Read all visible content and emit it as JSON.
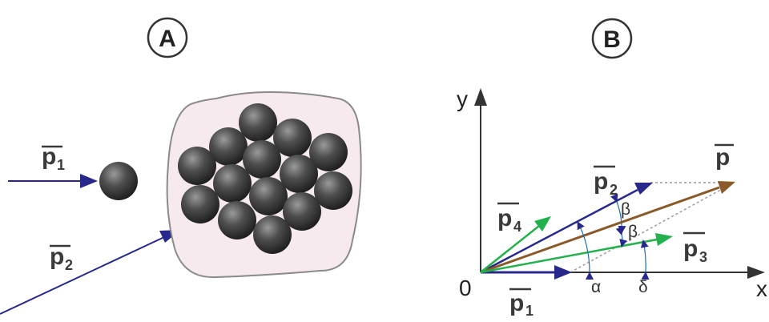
{
  "panels": {
    "a": {
      "label": "A"
    },
    "b": {
      "label": "B"
    }
  },
  "panel_a": {
    "p1": {
      "main": "p",
      "sub": "1"
    },
    "p2": {
      "main": "p",
      "sub": "2"
    }
  },
  "panel_b": {
    "y_axis": "y",
    "x_axis": "x",
    "origin": "0",
    "p": {
      "main": "p"
    },
    "p1": {
      "main": "p",
      "sub": "1"
    },
    "p2": {
      "main": "p",
      "sub": "2"
    },
    "p3": {
      "main": "p",
      "sub": "3"
    },
    "p4": {
      "main": "p",
      "sub": "4"
    },
    "angles": {
      "alpha": "α",
      "beta1": "β",
      "beta2": "β",
      "delta": "δ"
    }
  },
  "colors": {
    "blue": "#28288c",
    "green": "#22b14c",
    "brown": "#8b5a2b",
    "axis": "#333333",
    "nucleus_fill": "#f6eaee",
    "nucleus_stroke": "#8a8a8a"
  }
}
